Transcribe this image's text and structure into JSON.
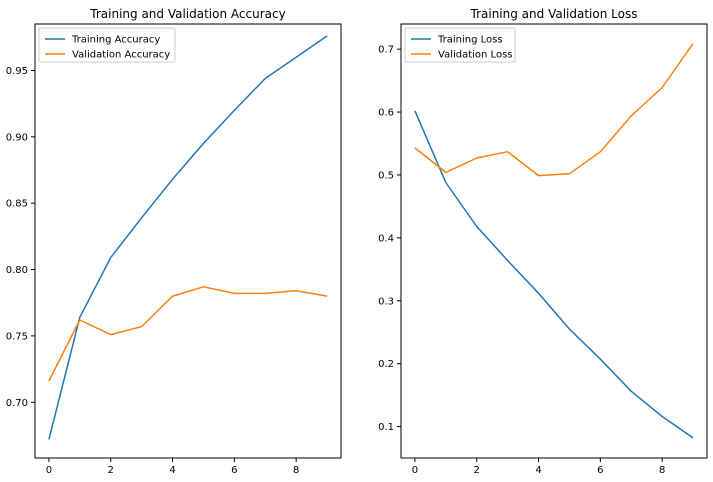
{
  "colors": {
    "series_1": "#1f77b4",
    "series_2": "#ff7f0e",
    "axes": "#000000",
    "legend_border": "#cccccc"
  },
  "chart_data": [
    {
      "type": "line",
      "title": "Training and Validation Accuracy",
      "xlabel": "",
      "ylabel": "",
      "x": [
        0,
        1,
        2,
        3,
        4,
        5,
        6,
        7,
        8,
        9
      ],
      "xlim": [
        -0.45,
        9.45
      ],
      "ylim": [
        0.658,
        0.985
      ],
      "xticks": [
        0,
        2,
        4,
        6,
        8
      ],
      "yticks": [
        0.7,
        0.75,
        0.8,
        0.85,
        0.9,
        0.95
      ],
      "ytick_labels": [
        "0.70",
        "0.75",
        "0.80",
        "0.85",
        "0.90",
        "0.95"
      ],
      "legend_position": "top-left",
      "grid": false,
      "series": [
        {
          "name": "Training Accuracy",
          "color": "#1f77b4",
          "values": [
            0.672,
            0.764,
            0.809,
            0.839,
            0.868,
            0.895,
            0.92,
            0.944,
            0.96,
            0.976
          ]
        },
        {
          "name": "Validation Accuracy",
          "color": "#ff7f0e",
          "values": [
            0.716,
            0.762,
            0.751,
            0.757,
            0.78,
            0.787,
            0.782,
            0.782,
            0.784,
            0.78
          ]
        }
      ]
    },
    {
      "type": "line",
      "title": "Training and Validation Loss",
      "xlabel": "",
      "ylabel": "",
      "x": [
        0,
        1,
        2,
        3,
        4,
        5,
        6,
        7,
        8,
        9
      ],
      "xlim": [
        -0.45,
        9.45
      ],
      "ylim": [
        0.05,
        0.74
      ],
      "xticks": [
        0,
        2,
        4,
        6,
        8
      ],
      "yticks": [
        0.1,
        0.2,
        0.3,
        0.4,
        0.5,
        0.6,
        0.7
      ],
      "ytick_labels": [
        "0.1",
        "0.2",
        "0.3",
        "0.4",
        "0.5",
        "0.6",
        "0.7"
      ],
      "legend_position": "top-left",
      "grid": false,
      "series": [
        {
          "name": "Training Loss",
          "color": "#1f77b4",
          "values": [
            0.602,
            0.488,
            0.418,
            0.364,
            0.312,
            0.255,
            0.207,
            0.156,
            0.116,
            0.082
          ]
        },
        {
          "name": "Validation Loss",
          "color": "#ff7f0e",
          "values": [
            0.543,
            0.504,
            0.527,
            0.537,
            0.499,
            0.502,
            0.537,
            0.594,
            0.639,
            0.709
          ]
        }
      ]
    }
  ]
}
